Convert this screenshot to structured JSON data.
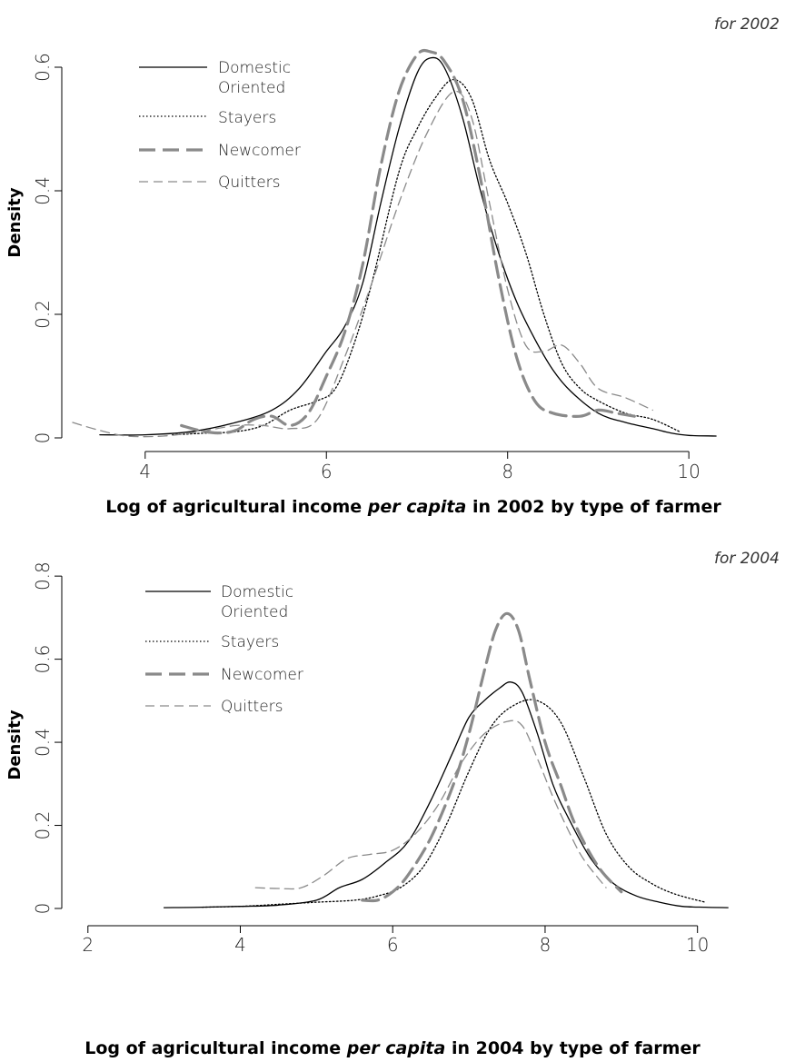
{
  "chart_data": [
    {
      "type": "line",
      "title": "for 2002",
      "xlabel_pre": "Log of agricultural income ",
      "xlabel_italic": "per capita",
      "xlabel_post": " in 2002 by type of farmer",
      "ylabel": "Density",
      "xlim": [
        3.2,
        10.6
      ],
      "ylim": [
        0,
        0.65
      ],
      "xticks": [
        4,
        6,
        8,
        10
      ],
      "xtick_labels": [
        "4",
        "6",
        "8",
        "10"
      ],
      "yticks": [
        0,
        0.2,
        0.4,
        0.6
      ],
      "ytick_labels": [
        "0",
        "0.2",
        "0.4",
        "0.6"
      ],
      "legend": [
        "Domestic",
        "Oriented",
        "Stayers",
        "Newcomer",
        "Quitters"
      ],
      "series": [
        {
          "name": "Domestic Oriented",
          "color": "#000000",
          "x": [
            3.5,
            4.0,
            4.5,
            5.0,
            5.4,
            5.7,
            6.0,
            6.2,
            6.4,
            6.6,
            6.8,
            7.0,
            7.15,
            7.3,
            7.5,
            7.7,
            7.9,
            8.1,
            8.3,
            8.5,
            8.7,
            9.0,
            9.3,
            9.6,
            9.8,
            10.0,
            10.3
          ],
          "y": [
            0.005,
            0.005,
            0.01,
            0.025,
            0.045,
            0.08,
            0.14,
            0.18,
            0.25,
            0.38,
            0.5,
            0.59,
            0.615,
            0.6,
            0.52,
            0.4,
            0.3,
            0.22,
            0.16,
            0.11,
            0.075,
            0.04,
            0.025,
            0.015,
            0.008,
            0.004,
            0.003
          ]
        },
        {
          "name": "Stayers",
          "color": "#000000",
          "x": [
            4.3,
            4.7,
            5.0,
            5.3,
            5.6,
            5.9,
            6.1,
            6.3,
            6.5,
            6.8,
            7.0,
            7.2,
            7.4,
            7.6,
            7.8,
            8.0,
            8.2,
            8.4,
            8.6,
            8.8,
            9.0,
            9.3,
            9.6,
            9.9
          ],
          "y": [
            0.005,
            0.008,
            0.01,
            0.02,
            0.045,
            0.06,
            0.08,
            0.15,
            0.25,
            0.43,
            0.5,
            0.55,
            0.58,
            0.55,
            0.45,
            0.38,
            0.3,
            0.2,
            0.12,
            0.08,
            0.06,
            0.04,
            0.03,
            0.01
          ]
        },
        {
          "name": "Newcomer",
          "color": "#8a8a8a",
          "x": [
            4.4,
            4.6,
            4.8,
            5.0,
            5.2,
            5.4,
            5.6,
            5.8,
            6.0,
            6.2,
            6.4,
            6.6,
            6.8,
            7.0,
            7.15,
            7.3,
            7.5,
            7.7,
            7.9,
            8.1,
            8.3,
            8.5,
            8.8,
            9.0,
            9.2,
            9.4
          ],
          "y": [
            0.02,
            0.012,
            0.008,
            0.012,
            0.03,
            0.035,
            0.02,
            0.04,
            0.1,
            0.17,
            0.28,
            0.44,
            0.56,
            0.62,
            0.625,
            0.61,
            0.55,
            0.42,
            0.26,
            0.13,
            0.06,
            0.04,
            0.035,
            0.045,
            0.04,
            0.035
          ]
        },
        {
          "name": "Quitters",
          "color": "#8a8a8a",
          "x": [
            3.2,
            3.5,
            3.8,
            4.2,
            4.6,
            5.0,
            5.3,
            5.6,
            5.9,
            6.2,
            6.5,
            6.8,
            7.1,
            7.4,
            7.6,
            7.8,
            8.0,
            8.2,
            8.4,
            8.6,
            8.8,
            9.0,
            9.3,
            9.6
          ],
          "y": [
            0.025,
            0.012,
            0.003,
            0.003,
            0.01,
            0.02,
            0.02,
            0.015,
            0.03,
            0.13,
            0.25,
            0.38,
            0.49,
            0.56,
            0.52,
            0.38,
            0.24,
            0.15,
            0.14,
            0.15,
            0.12,
            0.08,
            0.065,
            0.045
          ]
        }
      ]
    },
    {
      "type": "line",
      "title": "for 2004",
      "xlabel_pre": "Log of agricultural income ",
      "xlabel_italic": "per capita",
      "xlabel_post": " in 2004 by type of farmer",
      "ylabel": "Density",
      "xlim": [
        1.8,
        10.6
      ],
      "ylim": [
        0,
        0.82
      ],
      "xticks": [
        2,
        4,
        6,
        8,
        10
      ],
      "xtick_labels": [
        "2",
        "4",
        "6",
        "8",
        "10"
      ],
      "yticks": [
        0,
        0.2,
        0.4,
        0.6,
        0.8
      ],
      "ytick_labels": [
        "0",
        "0.2",
        "0.4",
        "0.6",
        "0.8"
      ],
      "legend": [
        "Domestic",
        "Oriented",
        "Stayers",
        "Newcomer",
        "Quitters"
      ],
      "series": [
        {
          "name": "Domestic Oriented",
          "color": "#000000",
          "x": [
            3.0,
            3.5,
            4.0,
            4.5,
            5.0,
            5.3,
            5.6,
            5.9,
            6.2,
            6.5,
            6.8,
            7.0,
            7.2,
            7.4,
            7.55,
            7.7,
            7.9,
            8.1,
            8.3,
            8.6,
            8.9,
            9.2,
            9.5,
            9.8,
            10.1,
            10.4
          ],
          "y": [
            0.002,
            0.003,
            0.005,
            0.008,
            0.02,
            0.05,
            0.07,
            0.11,
            0.16,
            0.26,
            0.38,
            0.46,
            0.5,
            0.53,
            0.545,
            0.52,
            0.42,
            0.3,
            0.22,
            0.12,
            0.06,
            0.03,
            0.015,
            0.005,
            0.003,
            0.002
          ]
        },
        {
          "name": "Stayers",
          "color": "#000000",
          "x": [
            3.5,
            4.0,
            4.5,
            5.0,
            5.5,
            5.8,
            6.1,
            6.4,
            6.7,
            7.0,
            7.3,
            7.6,
            7.9,
            8.2,
            8.5,
            8.8,
            9.1,
            9.4,
            9.7,
            10.1
          ],
          "y": [
            0.003,
            0.005,
            0.01,
            0.015,
            0.02,
            0.03,
            0.05,
            0.1,
            0.2,
            0.33,
            0.44,
            0.49,
            0.5,
            0.45,
            0.32,
            0.18,
            0.1,
            0.06,
            0.035,
            0.015
          ]
        },
        {
          "name": "Newcomer",
          "color": "#8a8a8a",
          "x": [
            5.6,
            5.8,
            6.0,
            6.2,
            6.5,
            6.8,
            7.0,
            7.2,
            7.35,
            7.5,
            7.65,
            7.8,
            8.0,
            8.2,
            8.4,
            8.7,
            9.0
          ],
          "y": [
            0.02,
            0.02,
            0.04,
            0.08,
            0.17,
            0.3,
            0.42,
            0.57,
            0.67,
            0.71,
            0.67,
            0.55,
            0.4,
            0.3,
            0.2,
            0.1,
            0.04
          ]
        },
        {
          "name": "Quitters",
          "color": "#8a8a8a",
          "x": [
            4.2,
            4.5,
            4.8,
            5.1,
            5.4,
            5.7,
            6.0,
            6.3,
            6.6,
            6.9,
            7.2,
            7.5,
            7.7,
            7.9,
            8.1,
            8.3,
            8.5,
            8.8
          ],
          "y": [
            0.05,
            0.048,
            0.05,
            0.08,
            0.12,
            0.13,
            0.14,
            0.18,
            0.25,
            0.35,
            0.42,
            0.45,
            0.44,
            0.36,
            0.27,
            0.19,
            0.12,
            0.05
          ]
        }
      ]
    }
  ]
}
